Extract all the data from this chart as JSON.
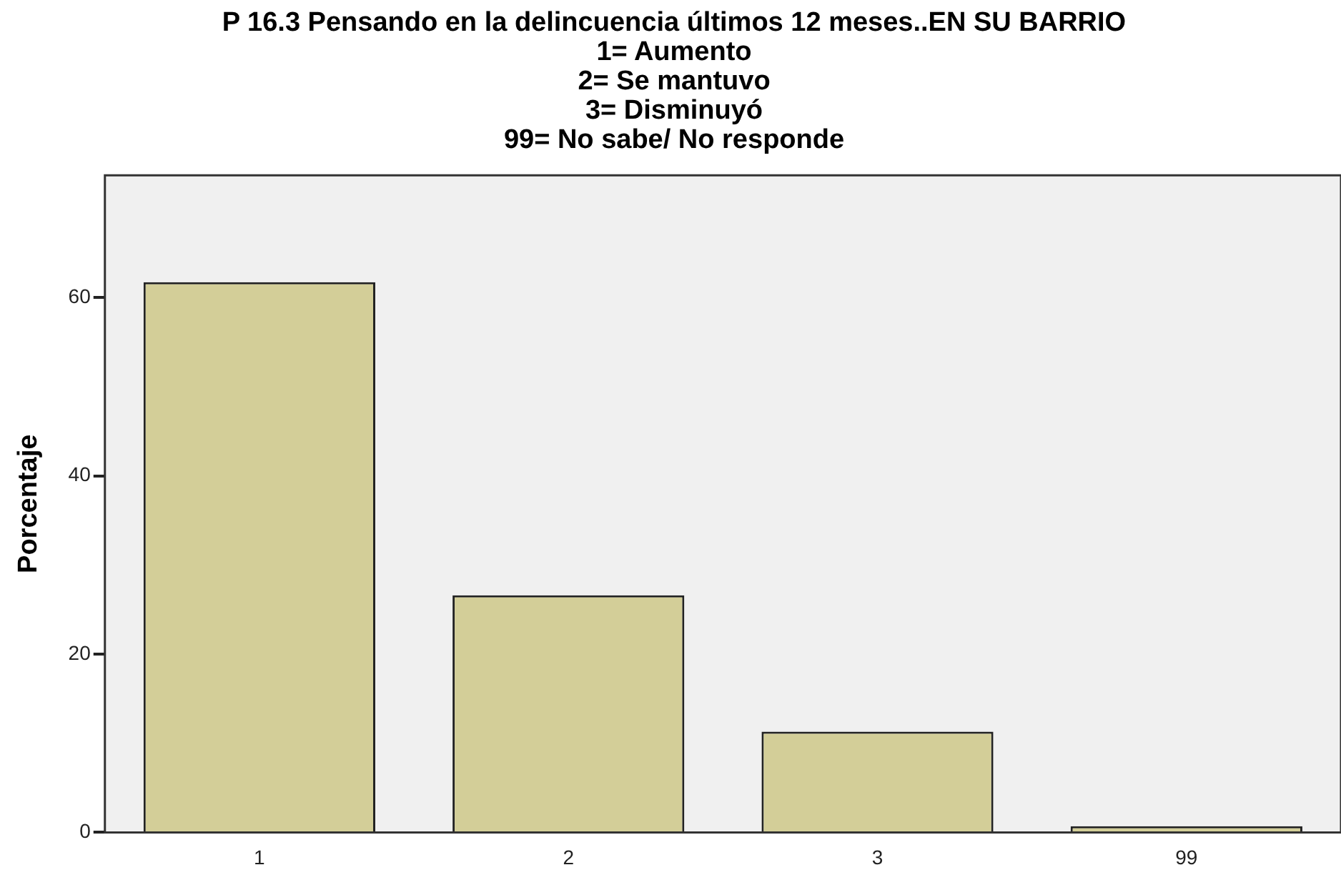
{
  "chart_data": {
    "type": "bar",
    "title": "P 16.3 Pensando en la delincuencia últimos 12 meses..EN SU BARRIO\n1= Aumento\n2= Se mantuvo\n3= Disminuyó\n99= No sabe/ No responde",
    "ylabel": "Porcentaje",
    "categories": [
      "1",
      "2",
      "3",
      "99"
    ],
    "values": [
      61.7,
      26.6,
      11.3,
      0.7
    ],
    "color": "#d3ce98",
    "ylim": [
      0,
      73.7
    ],
    "yticks": [
      0,
      20,
      40,
      60
    ],
    "grid": false,
    "legend": false
  }
}
